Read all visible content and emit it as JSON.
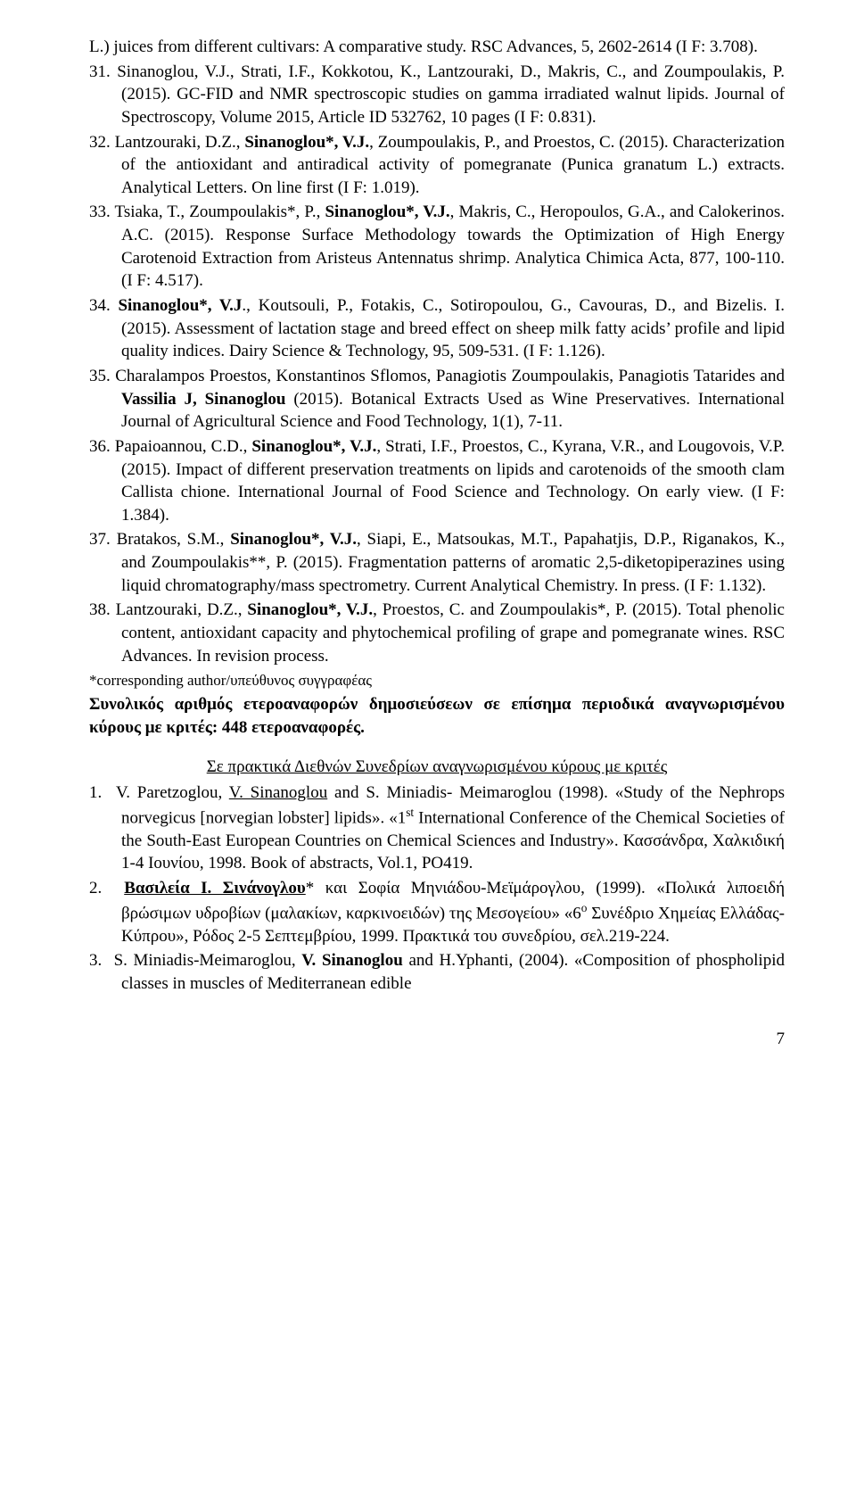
{
  "refs": [
    {
      "num": "",
      "pre": "L.) juices from different cultivars: A comparative study. RSC Advances, 5, 2602-2614 (I F: 3.708).",
      "post": ""
    },
    {
      "num": "31.",
      "pre": "Sinanoglou, V.J., Strati, I.F., Kokkotou, K., Lantzouraki, D., Makris, C., and Zoumpoulakis, P. (2015). GC-FID and NMR spectroscopic studies on gamma irradiated walnut lipids. Journal of Spectroscopy, Volume 2015, Article ID 532762, 10 pages (I F: 0.831).",
      "post": ""
    },
    {
      "num": "32.",
      "pre": "Lantzouraki, D.Z., ",
      "bold1": "Sinanoglou*, V.J.",
      "mid": ", Zoumpoulakis, P., and Proestos, C. (2015). Characterization of the antioxidant and antiradical activity of pomegranate (Punica granatum L.) extracts. Analytical Letters. On line first (I F: 1.019).",
      "post": ""
    },
    {
      "num": "33.",
      "pre": "Tsiaka, T., Zoumpoulakis*, P., ",
      "bold1": "Sinanoglou*, V.J.",
      "mid": ", Makris, C., Heropoulos, G.A., and Calokerinos. A.C. (2015). Response Surface Methodology towards the Optimization of High Energy Carotenoid Extraction from Aristeus Antennatus shrimp. Analytica Chimica Acta, 877, 100-110. (I F: 4.517).",
      "post": ""
    },
    {
      "num": "34.",
      "bold1": "Sinanoglou*, V.J",
      "mid": "., Koutsouli, P., Fotakis, C., Sotiropoulou, G., Cavouras, D., and Bizelis. I. (2015). Assessment of lactation stage and breed effect on sheep milk fatty acids’ profile and lipid quality indices. Dairy Science & Technology, 95, 509-531. (I F: 1.126).",
      "post": ""
    },
    {
      "num": "35.",
      "pre": "Charalampos Proestos, Konstantinos Sflomos, Panagiotis Zoumpoulakis, Panagiotis Tatarides and ",
      "bold1": "Vassilia J, Sinanoglou",
      "mid": " (2015). Botanical Extracts Used as Wine Preservatives. International Journal of Agricultural Science and Food Technology, 1(1), 7-11.",
      "post": ""
    },
    {
      "num": "36.",
      "pre": "Papaioannou, C.D., ",
      "bold1": "Sinanoglou*, V.J.",
      "mid": ", Strati, I.F., Proestos, C., Kyrana, V.R., and Lougovois, V.P. (2015). Impact of different preservation treatments on lipids and carotenoids of the smooth clam Callista chione. International Journal of Food Science and Technology. On early view. (I F: 1.384).",
      "post": ""
    },
    {
      "num": "37.",
      "pre": "Bratakos, S.M., ",
      "bold1": "Sinanoglou*, V.J.",
      "mid": ", Siapi, E., Matsoukas, M.T., Papahatjis, D.P., Riganakos, K., and Zoumpoulakis**, P. (2015). Fragmentation patterns of aromatic 2,5-diketopiperazines using liquid chromatography/mass spectrometry. Current Analytical Chemistry. In press. (I F: 1.132).",
      "post": ""
    },
    {
      "num": "38.",
      "pre": "Lantzouraki, D.Z., ",
      "bold1": "Sinanoglou*, V.J.",
      "mid": ", Proestos, C. and Zoumpoulakis*, P. (2015). Total phenolic content, antioxidant capacity and phytochemical profiling of grape and pomegranate wines. RSC Advances. In revision process.",
      "post": ""
    }
  ],
  "note": "*corresponding author/υπεύθυνος συγγραφέας",
  "summary": "Συνολικός αριθμός ετεροαναφορών δημοσιεύσεων σε επίσημα περιοδικά αναγνωρισμένου κύρους με κριτές: 448 ετεροαναφορές.",
  "section_heading": "Σε πρακτικά Διεθνών Συνεδρίων αναγνωρισμένου κύρους με κριτές",
  "confs": [
    {
      "num": "1.",
      "pre": "V. Paretzoglou, ",
      "uline": "V. Sinanoglou",
      "mid1": " and S. Miniadis- Meimaroglou (1998). «Study of the Nephrops norvegicus [norvegian lobster] lipids». «1",
      "sup": "st",
      "mid2": " International Conference of the Chemical Societies of the South-East European Countries on Chemical Sciences and Industry». Κασσάνδρα, Χαλκιδική 1-4 Ιουνίου, 1998. Book of abstracts, Vol.1, PO419."
    },
    {
      "num": "2.",
      "uline_bold": "Βασιλεία Ι. Σινάνογλου",
      "mid1": "* και Σοφία Μηνιάδου-Μεϊμάρογλου, (1999). «Πολικά λιποειδή βρώσιμων υδροβίων (μαλακίων, καρκινοειδών) της Μεσογείου» «6",
      "sup": "ο",
      "mid2": " Συνέδριο Χημείας Ελλάδας-Κύπρου», Ρόδος 2-5 Σεπτεμβρίου, 1999. Πρακτικά του συνεδρίου, σελ.219-224."
    },
    {
      "num": "3.",
      "pre": "S. Miniadis-Meimaroglou, ",
      "bold": "V. Sinanoglou",
      "mid1": " and H.Yphanti, (2004). «Composition of phospholipid classes in muscles of Mediterranean edible"
    }
  ],
  "pagenum": "7"
}
